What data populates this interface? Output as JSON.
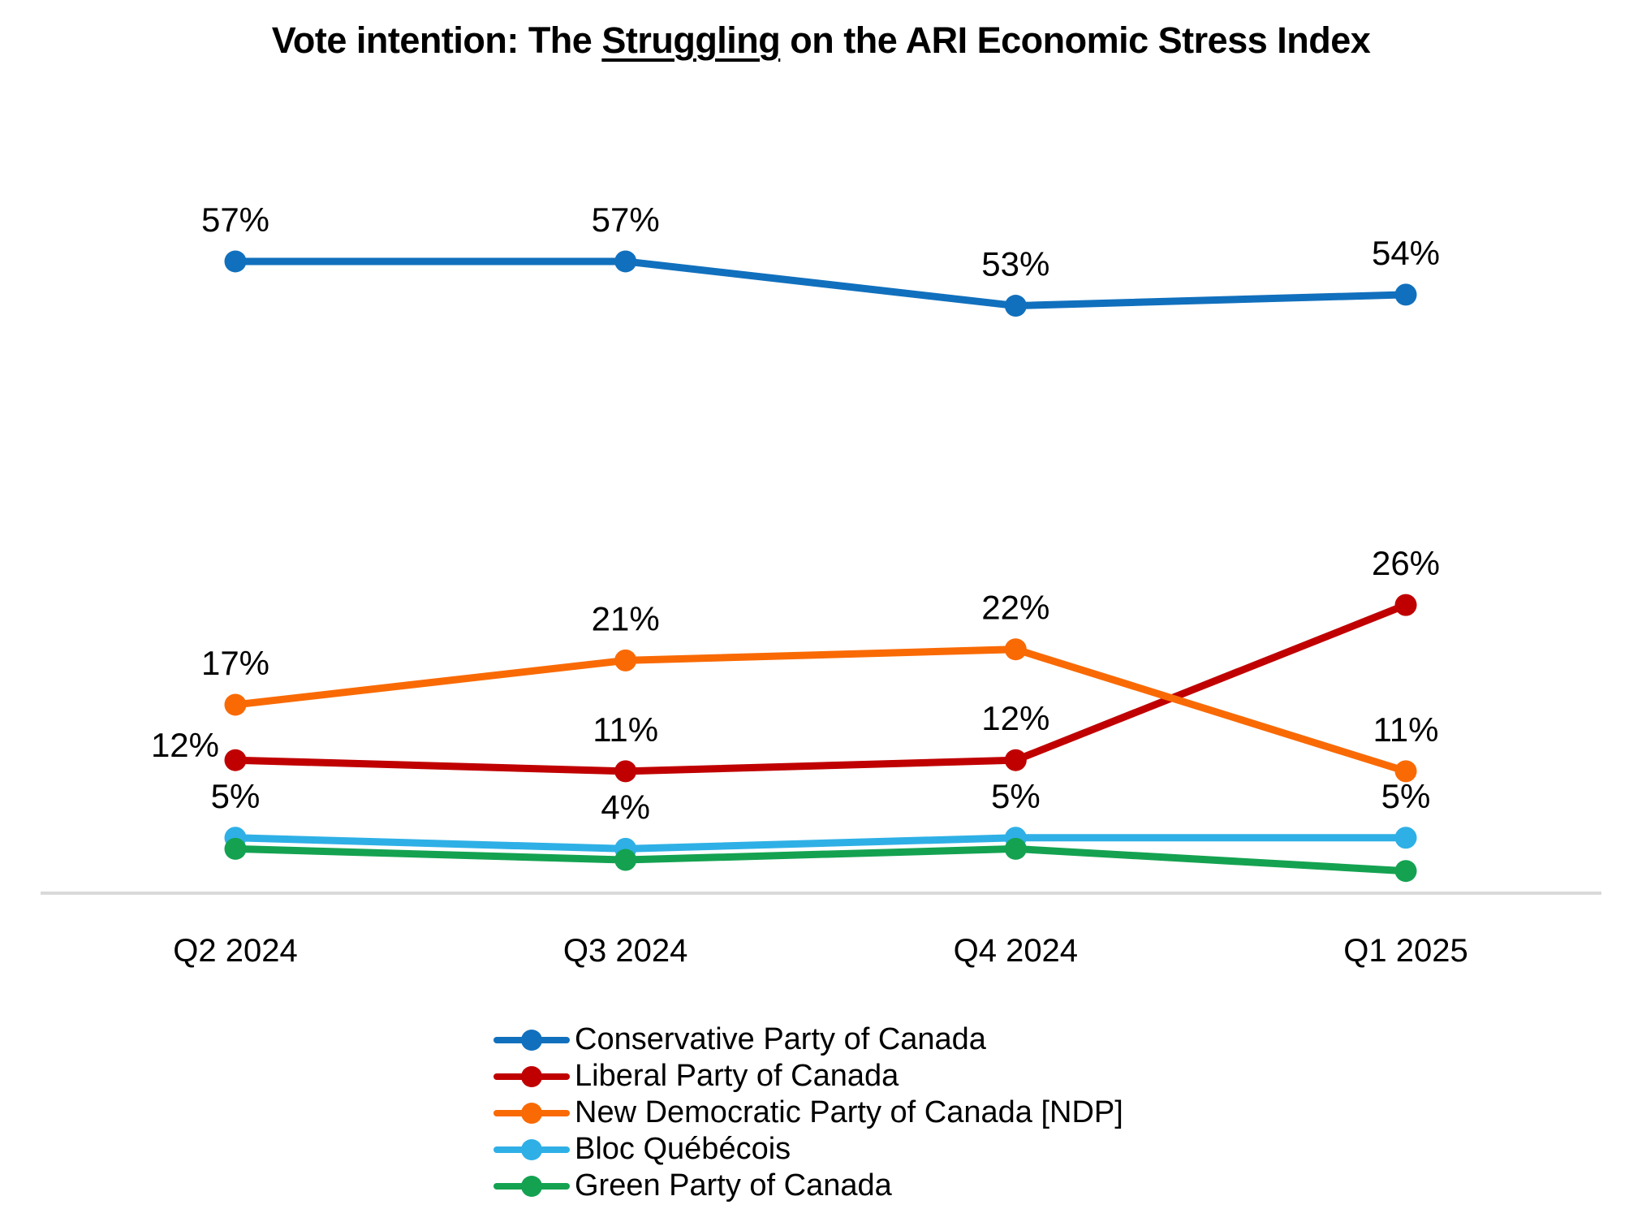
{
  "title": {
    "prefix": "Vote intention: The ",
    "underlined": "Struggling",
    "suffix": " on the ARI Economic Stress Index"
  },
  "chart_data": {
    "type": "line",
    "title": "Vote intention: The Struggling on the ARI Economic Stress Index",
    "x_categories": [
      "Q2 2024",
      "Q3 2024",
      "Q4 2024",
      "Q1 2025"
    ],
    "ylim": [
      0,
      60
    ],
    "grid": "off",
    "legend_position": "bottom-left",
    "axis": {
      "color": "#D9D9D9"
    },
    "label_color": "#000000",
    "series": [
      {
        "name": "Conservative Party of Canada",
        "color": "#1170BD",
        "values": [
          57,
          57,
          53,
          54
        ],
        "labels": [
          "57%",
          "57%",
          "53%",
          "54%"
        ],
        "label_sides": [
          "above",
          "above",
          "above",
          "above"
        ]
      },
      {
        "name": "Liberal Party of Canada",
        "color": "#C00000",
        "values": [
          12,
          11,
          12,
          26
        ],
        "labels": [
          "12%",
          "11%",
          "12%",
          "26%"
        ],
        "label_sides": [
          "left",
          "above",
          "above",
          "above"
        ]
      },
      {
        "name": "New Democratic Party of Canada [NDP]",
        "color": "#F96A05",
        "values": [
          17,
          21,
          22,
          11
        ],
        "labels": [
          "17%",
          "21%",
          "22%",
          "11%"
        ],
        "label_sides": [
          "above",
          "above",
          "above",
          "above"
        ]
      },
      {
        "name": "Bloc Québécois",
        "color": "#2EB0E6",
        "values": [
          5,
          4,
          5,
          5
        ],
        "labels": [
          "5%",
          "4%",
          "5%",
          "5%"
        ],
        "label_sides": [
          "above",
          "above",
          "above",
          "above"
        ]
      },
      {
        "name": "Green Party of Canada",
        "color": "#14A251",
        "values": [
          4,
          3,
          4,
          2
        ],
        "labels": [
          "",
          "",
          "",
          ""
        ],
        "label_sides": [
          "above",
          "above",
          "above",
          "above"
        ]
      }
    ]
  }
}
